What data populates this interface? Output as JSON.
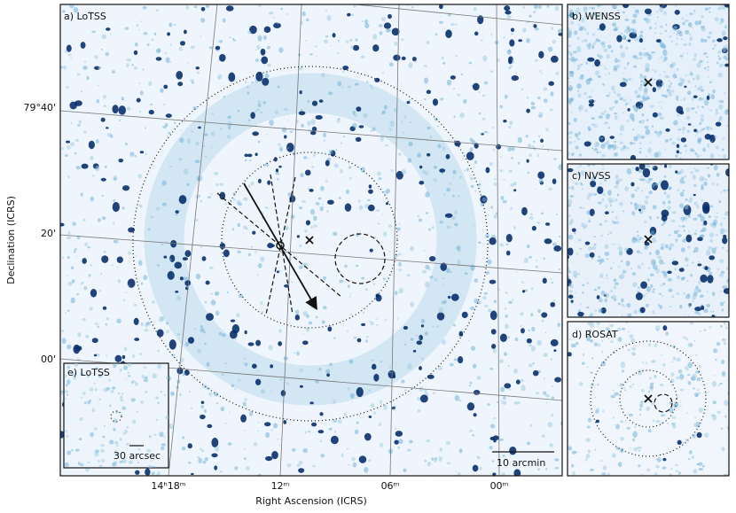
{
  "panels": {
    "a": "a) LoTSS",
    "b": "b) WENSS",
    "c": "c) NVSS",
    "d": "d) ROSAT",
    "e": "e) LoTSS"
  },
  "axes": {
    "x_label": "Right Ascension (ICRS)",
    "y_label": "Declination (ICRS)",
    "x_ticks": [
      "14ʰ18ᵐ",
      "12ᵐ",
      "06ᵐ",
      "00ᵐ"
    ],
    "y_ticks": [
      "79°40'",
      "20'",
      "00'"
    ]
  },
  "scale_bars": {
    "main": "10 arcmin",
    "inset": "30 arcsec"
  }
}
